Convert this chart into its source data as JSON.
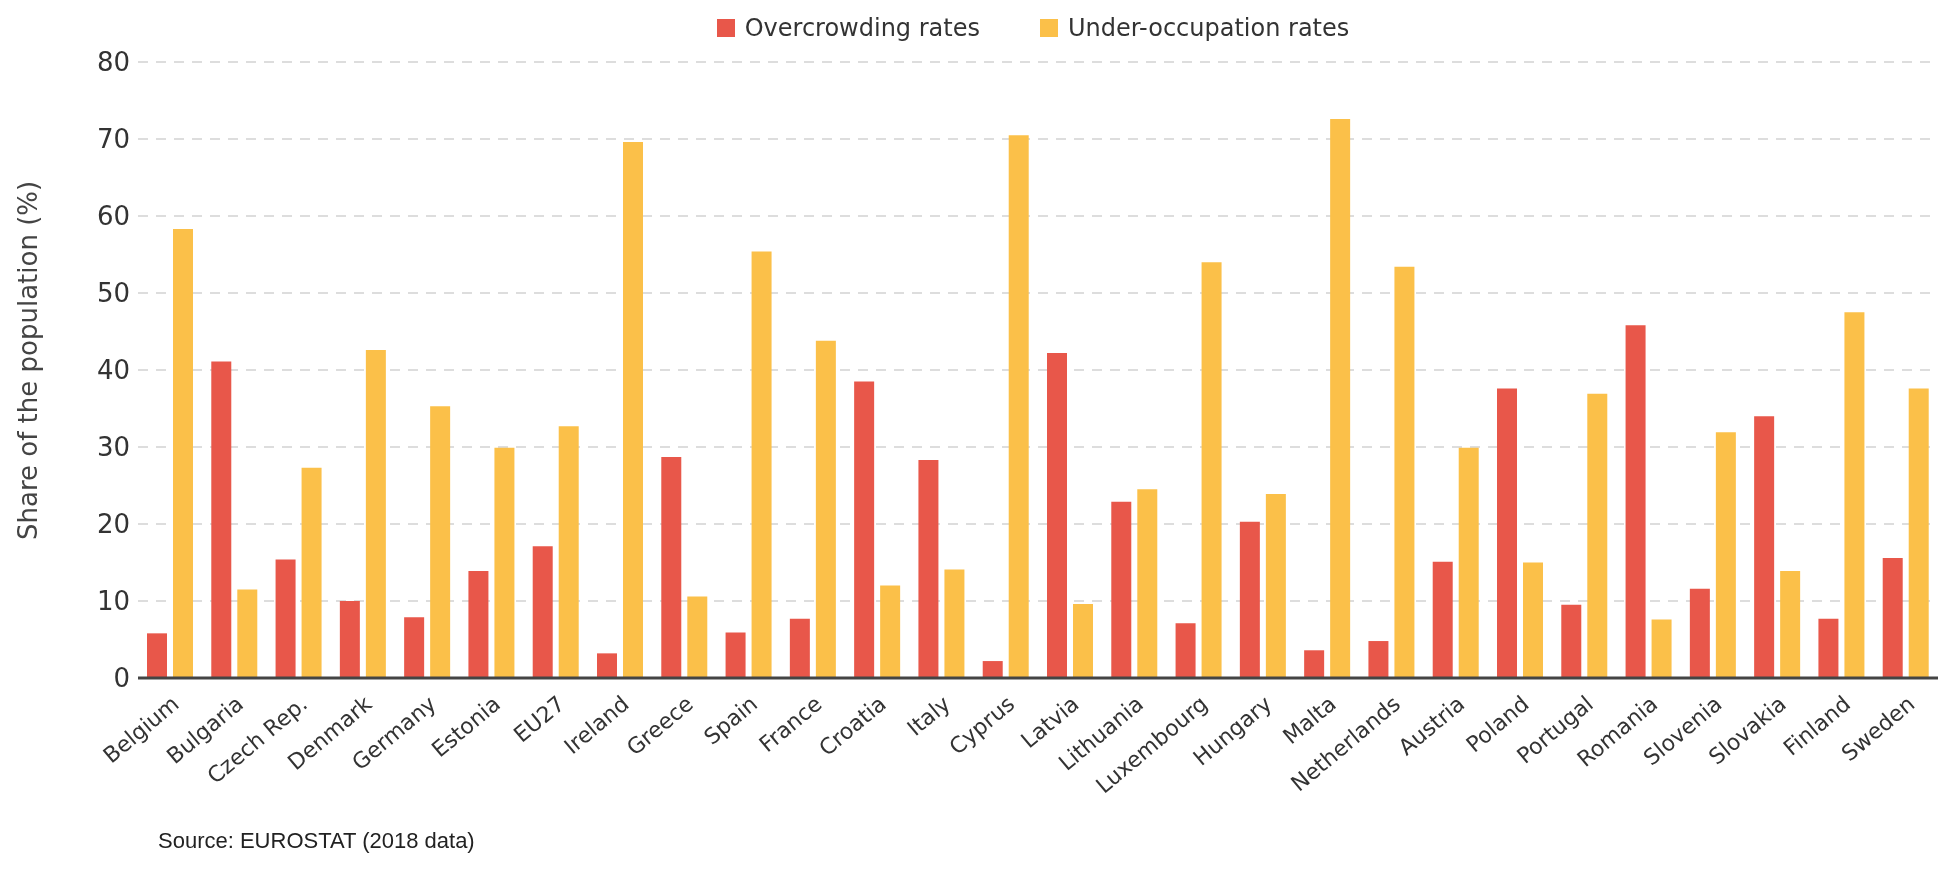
{
  "chart_data": {
    "type": "bar",
    "ylabel": "Share of the population (%)",
    "categories": [
      "Belgium",
      "Bulgaria",
      "Czech Rep.",
      "Denmark",
      "Germany",
      "Estonia",
      "EU27",
      "Ireland",
      "Greece",
      "Spain",
      "France",
      "Croatia",
      "Italy",
      "Cyprus",
      "Latvia",
      "Lithuania",
      "Luxembourg",
      "Hungary",
      "Malta",
      "Netherlands",
      "Austria",
      "Poland",
      "Portugal",
      "Romania",
      "Slovenia",
      "Slovakia",
      "Finland",
      "Sweden"
    ],
    "series": [
      {
        "name": "Overcrowding rates",
        "color": "#e8574a",
        "values": [
          5.8,
          41.1,
          15.4,
          10,
          7.9,
          13.9,
          17.1,
          3.2,
          28.7,
          5.9,
          7.7,
          38.5,
          28.3,
          2.2,
          42.2,
          22.9,
          7.1,
          20.3,
          3.6,
          4.8,
          15.1,
          37.6,
          9.5,
          45.8,
          11.6,
          34,
          7.7,
          15.6
        ]
      },
      {
        "name": "Under-occupation rates",
        "color": "#fbc049",
        "values": [
          58.3,
          11.5,
          27.3,
          42.6,
          35.3,
          29.9,
          32.7,
          69.6,
          10.6,
          55.4,
          43.8,
          12,
          14.1,
          70.5,
          9.6,
          24.5,
          54,
          23.9,
          72.6,
          53.4,
          29.9,
          15,
          36.9,
          7.6,
          31.9,
          13.9,
          47.5,
          37.6
        ]
      }
    ],
    "ylim": [
      0,
      80
    ],
    "yticks": [
      0,
      10,
      20,
      30,
      40,
      50,
      60,
      70,
      80
    ],
    "grid": "y",
    "legend": "top",
    "annotations": [
      "Source: EUROSTAT (2018 data)"
    ]
  }
}
